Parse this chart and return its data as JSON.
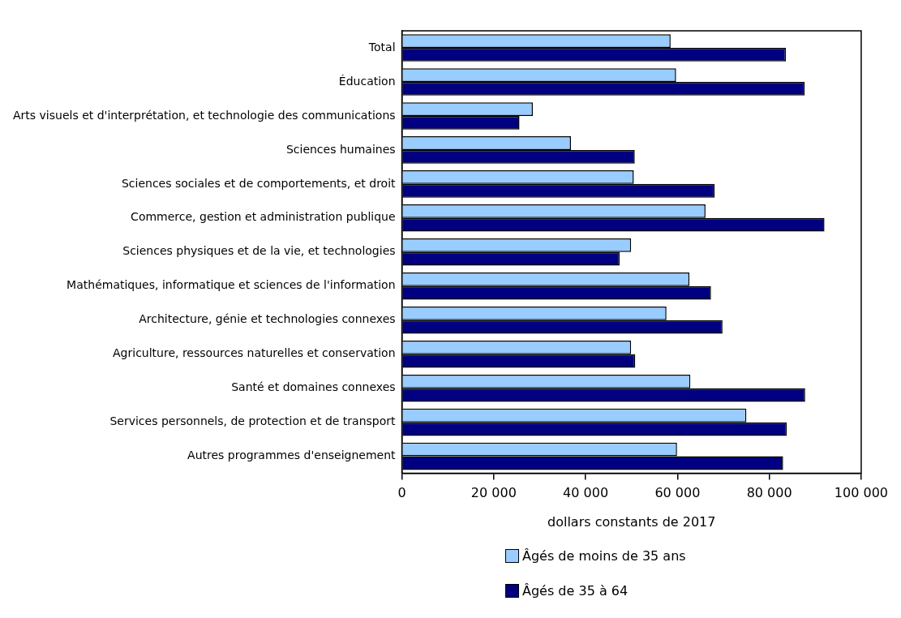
{
  "chart_data": {
    "type": "bar",
    "orientation": "horizontal",
    "xlabel": "dollars constants de 2017",
    "categories": [
      "Total",
      "Éducation",
      "Arts visuels et d'interprétation, et technologie des communications",
      "Sciences humaines",
      "Sciences sociales et de comportements, et droit",
      "Commerce, gestion et administration publique",
      "Sciences physiques et de la vie, et technologies",
      "Mathématiques, informatique et sciences de l'information",
      "Architecture, génie et technologies connexes",
      "Agriculture, ressources naturelles et conservation",
      "Santé et domaines connexes",
      "Services personnels, de protection et de transport",
      "Autres programmes d'enseignement"
    ],
    "series": [
      {
        "name": "Âgés de moins de 35 ans",
        "color": "#99ccff",
        "values": [
          58500,
          59700,
          28500,
          36800,
          50500,
          66100,
          49900,
          62600,
          57600,
          49900,
          62800,
          75000,
          59900
        ]
      },
      {
        "name": "Âgés de 35 à 64",
        "color": "#000080",
        "values": [
          83600,
          87700,
          25600,
          50700,
          68100,
          92000,
          47400,
          67300,
          69800,
          50800,
          87800,
          83800,
          83000
        ]
      }
    ],
    "xlim": [
      0,
      100000
    ],
    "xticks": [
      {
        "value": 0,
        "label": "0"
      },
      {
        "value": 20000,
        "label": "20 000"
      },
      {
        "value": 40000,
        "label": "40 000"
      },
      {
        "value": 60000,
        "label": "60 000"
      },
      {
        "value": 80000,
        "label": "80 000"
      },
      {
        "value": 100000,
        "label": "100 000"
      }
    ],
    "grid": false,
    "legend": "bottom left"
  }
}
